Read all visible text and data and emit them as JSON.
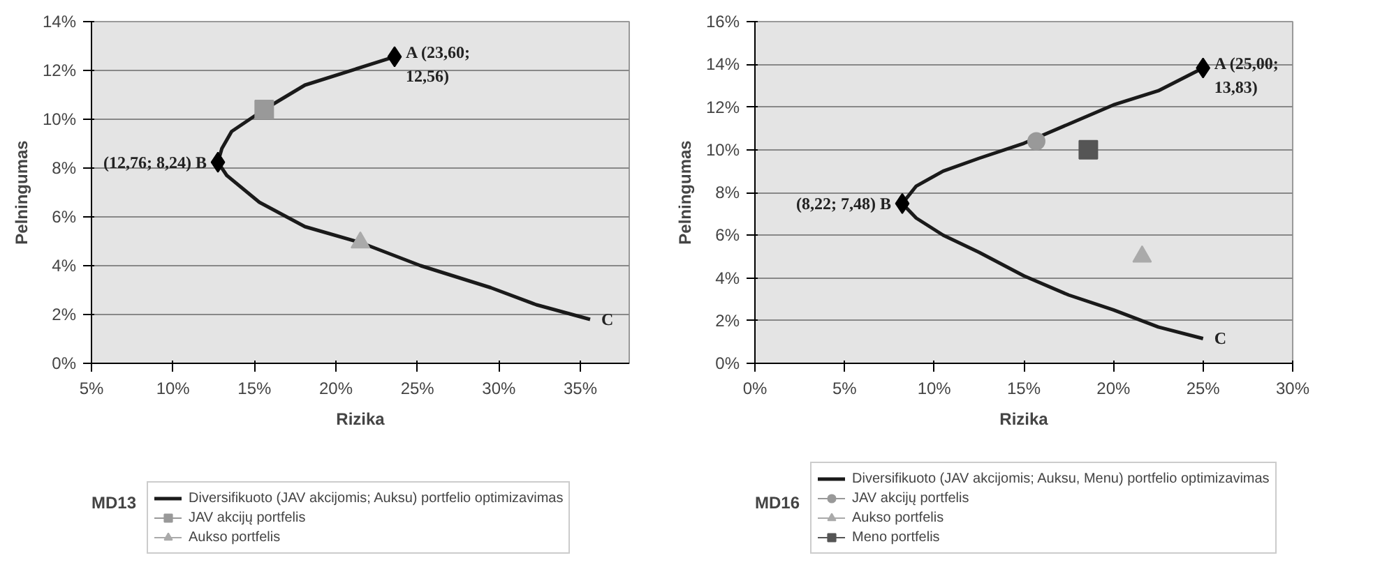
{
  "chart_data": [
    {
      "type": "line",
      "xlabel": "Rizika",
      "ylabel": "Pelningumas",
      "xlim": [
        5,
        38
      ],
      "ylim": [
        0,
        14
      ],
      "xticks": [
        {
          "value": 5,
          "label": "5%"
        },
        {
          "value": 10,
          "label": "10%"
        },
        {
          "value": 15,
          "label": "15%"
        },
        {
          "value": 20,
          "label": "20%"
        },
        {
          "value": 25,
          "label": "25%"
        },
        {
          "value": 30,
          "label": "30%"
        },
        {
          "value": 35,
          "label": "35%"
        }
      ],
      "yticks": [
        {
          "value": 0,
          "label": "0%"
        },
        {
          "value": 2,
          "label": "2%"
        },
        {
          "value": 4,
          "label": "4%"
        },
        {
          "value": 6,
          "label": "6%"
        },
        {
          "value": 8,
          "label": "8%"
        },
        {
          "value": 10,
          "label": "10%"
        },
        {
          "value": 12,
          "label": "12%"
        },
        {
          "value": 14,
          "label": "14%"
        }
      ],
      "grid": "y",
      "legend": "bottom",
      "series": [
        {
          "name": "Diversifikuoto (JAV akcijomis; Auksu) portfelio optimizavimas",
          "type": "line",
          "marker": "none",
          "color": "#1a1a1a",
          "x": [
            23.6,
            18.1,
            15.6,
            13.6,
            13.0,
            12.76,
            13.3,
            15.3,
            18.1,
            21.5,
            25.2,
            29.5,
            32.3,
            35.6
          ],
          "values": [
            12.56,
            11.4,
            10.4,
            9.5,
            8.8,
            8.24,
            7.7,
            6.6,
            5.6,
            4.95,
            4.0,
            3.1,
            2.4,
            1.8
          ]
        },
        {
          "type": "scatter",
          "marker": "diamond",
          "color": "#000000",
          "x": [
            23.6,
            12.76
          ],
          "values": [
            12.56,
            8.24
          ]
        },
        {
          "name": "JAV akcijų portfelis",
          "type": "scatter",
          "marker": "square",
          "color": "#999999",
          "x": [
            15.6
          ],
          "values": [
            10.4
          ]
        },
        {
          "name": "Aukso portfelis",
          "type": "scatter",
          "marker": "triangle",
          "color": "#aaaaaa",
          "x": [
            21.5
          ],
          "values": [
            4.95
          ]
        }
      ],
      "annotations": [
        {
          "text": "A (23,60;\n12,56)",
          "x": 23.6,
          "y": 12.56
        },
        {
          "text": "(12,76; 8,24) B",
          "x": 12.76,
          "y": 8.24
        },
        {
          "text": "C",
          "x": 35.6,
          "y": 1.8
        },
        "MD13"
      ]
    },
    {
      "type": "line",
      "xlabel": "Rizika",
      "ylabel": "Pelningumas",
      "xlim": [
        0,
        30
      ],
      "ylim": [
        0,
        16
      ],
      "xticks": [
        {
          "value": 0,
          "label": "0%"
        },
        {
          "value": 5,
          "label": "5%"
        },
        {
          "value": 10,
          "label": "10%"
        },
        {
          "value": 15,
          "label": "15%"
        },
        {
          "value": 20,
          "label": "20%"
        },
        {
          "value": 25,
          "label": "25%"
        },
        {
          "value": 30,
          "label": "30%"
        }
      ],
      "yticks": [
        {
          "value": 0,
          "label": "0%"
        },
        {
          "value": 2,
          "label": "2%"
        },
        {
          "value": 4,
          "label": "4%"
        },
        {
          "value": 6,
          "label": "6%"
        },
        {
          "value": 8,
          "label": "8%"
        },
        {
          "value": 10,
          "label": "10%"
        },
        {
          "value": 12,
          "label": "12%"
        },
        {
          "value": 14,
          "label": "14%"
        },
        {
          "value": 16,
          "label": "16%"
        }
      ],
      "grid": "y",
      "legend": "bottom",
      "series": [
        {
          "name": "Diversifikuoto (JAV akcijomis; Auksu, Menu) portfelio optimizavimas",
          "type": "line",
          "marker": "none",
          "color": "#1a1a1a",
          "x": [
            25.0,
            22.5,
            20.0,
            17.5,
            15.0,
            12.5,
            10.5,
            9.0,
            8.22,
            9.0,
            10.5,
            12.5,
            15.0,
            17.5,
            20.0,
            22.5,
            25.0
          ],
          "values": [
            13.83,
            12.76,
            12.1,
            11.2,
            10.3,
            9.6,
            9.0,
            8.3,
            7.48,
            6.8,
            6.0,
            5.2,
            4.1,
            3.2,
            2.5,
            1.7,
            1.16
          ]
        },
        {
          "type": "scatter",
          "marker": "diamond",
          "color": "#000000",
          "x": [
            25.0,
            8.22
          ],
          "values": [
            13.83,
            7.48
          ]
        },
        {
          "name": "JAV akcijų portfelis",
          "type": "scatter",
          "marker": "circle",
          "color": "#999999",
          "x": [
            15.7
          ],
          "values": [
            10.4
          ]
        },
        {
          "name": "Aukso portfelis",
          "type": "scatter",
          "marker": "triangle",
          "color": "#aaaaaa",
          "x": [
            21.6
          ],
          "values": [
            5.0
          ]
        },
        {
          "name": "Meno portfelis",
          "type": "scatter",
          "marker": "square",
          "color": "#555555",
          "x": [
            18.6
          ],
          "values": [
            10.0
          ]
        }
      ],
      "annotations": [
        {
          "text": "A (25,00;\n13,83)",
          "x": 25.0,
          "y": 13.83
        },
        {
          "text": "(8,22; 7,48) B",
          "x": 8.22,
          "y": 7.48
        },
        {
          "text": "C",
          "x": 25.0,
          "y": 1.16
        },
        "MD16"
      ]
    }
  ]
}
